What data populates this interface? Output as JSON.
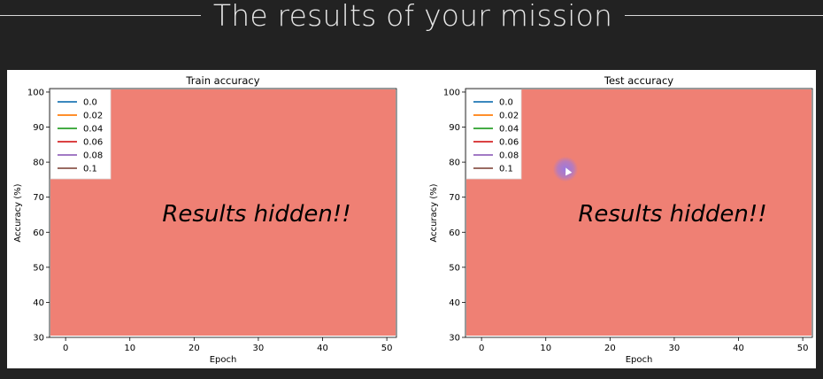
{
  "header": {
    "title": "The results of your mission"
  },
  "colors": {
    "page_bg": "#222222",
    "figure_bg": "#ffffff",
    "overlay": "#ef8074",
    "series": [
      "#1f77b4",
      "#ff7f0e",
      "#2ca02c",
      "#d62728",
      "#9467bd",
      "#8c564b"
    ]
  },
  "overlay_text": "Results hidden!!",
  "chart_data": [
    {
      "type": "line",
      "title": "Train accuracy",
      "xlabel": "Epoch",
      "ylabel": "Accuracy (%)",
      "xlim": [
        -2.5,
        51.5
      ],
      "ylim": [
        30,
        101
      ],
      "xticks": [
        0,
        10,
        20,
        30,
        40,
        50
      ],
      "yticks": [
        30,
        40,
        50,
        60,
        70,
        80,
        90,
        100
      ],
      "legend_position": "top-left",
      "series": [
        {
          "name": "0.0",
          "values": []
        },
        {
          "name": "0.02",
          "values": []
        },
        {
          "name": "0.04",
          "values": []
        },
        {
          "name": "0.06",
          "values": []
        },
        {
          "name": "0.08",
          "values": []
        },
        {
          "name": "0.1",
          "values": []
        }
      ],
      "annotation": "Results hidden!!"
    },
    {
      "type": "line",
      "title": "Test accuracy",
      "xlabel": "Epoch",
      "ylabel": "Accuracy (%)",
      "xlim": [
        -2.5,
        51.5
      ],
      "ylim": [
        30,
        101
      ],
      "xticks": [
        0,
        10,
        20,
        30,
        40,
        50
      ],
      "yticks": [
        30,
        40,
        50,
        60,
        70,
        80,
        90,
        100
      ],
      "legend_position": "top-left",
      "series": [
        {
          "name": "0.0",
          "values": []
        },
        {
          "name": "0.02",
          "values": []
        },
        {
          "name": "0.04",
          "values": []
        },
        {
          "name": "0.06",
          "values": []
        },
        {
          "name": "0.08",
          "values": []
        },
        {
          "name": "0.1",
          "values": []
        }
      ],
      "annotation": "Results hidden!!"
    }
  ]
}
